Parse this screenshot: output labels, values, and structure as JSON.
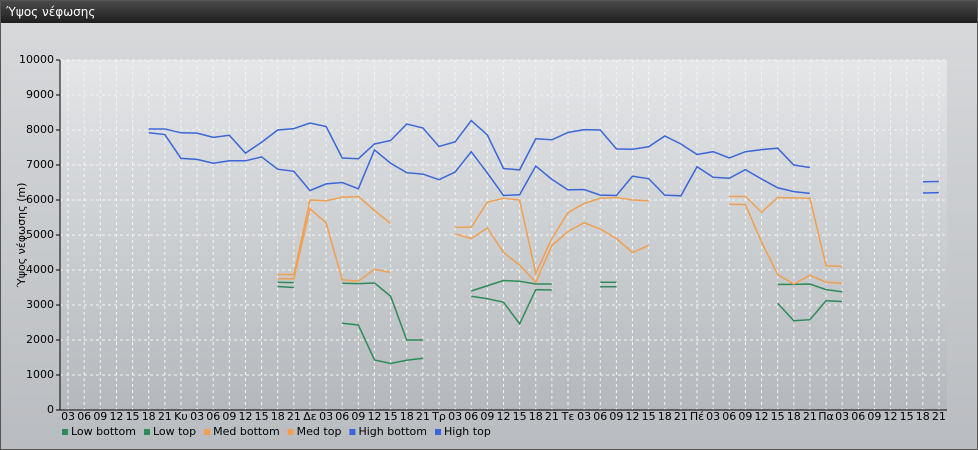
{
  "chart_data": {
    "type": "line",
    "title": "Ύψος νέφωσης",
    "y_label": "Ύψος νέφωσης (m)",
    "categories": [
      "03",
      "06",
      "09",
      "12",
      "15",
      "18",
      "21",
      "Κυ",
      "03",
      "06",
      "09",
      "12",
      "15",
      "18",
      "21",
      "Δε",
      "03",
      "06",
      "09",
      "12",
      "15",
      "18",
      "21",
      "Τρ",
      "03",
      "06",
      "09",
      "12",
      "15",
      "18",
      "21",
      "Τε",
      "03",
      "06",
      "09",
      "12",
      "15",
      "18",
      "21",
      "Πέ",
      "03",
      "06",
      "09",
      "12",
      "15",
      "18",
      "21",
      "Πα",
      "03",
      "06",
      "09",
      "12",
      "15",
      "18",
      "21"
    ],
    "ylim": [
      0,
      10000
    ],
    "yticks": [
      0,
      1000,
      2000,
      3000,
      4000,
      5000,
      6000,
      7000,
      8000,
      9000,
      10000
    ],
    "grid": true,
    "legend": "bottom",
    "series": [
      {
        "name": "Low bottom",
        "color": "#2e8b57",
        "values": [
          null,
          null,
          null,
          null,
          null,
          null,
          null,
          null,
          null,
          null,
          null,
          null,
          null,
          3530,
          3500,
          null,
          null,
          2480,
          2430,
          1430,
          1330,
          1420,
          1480,
          null,
          null,
          3250,
          3180,
          3080,
          2460,
          3440,
          3430,
          null,
          null,
          3520,
          3520,
          null,
          null,
          null,
          null,
          null,
          null,
          null,
          null,
          null,
          3050,
          2550,
          2580,
          3120,
          3100,
          null,
          null,
          null,
          null,
          null,
          null
        ]
      },
      {
        "name": "Low top",
        "color": "#2e8b57",
        "values": [
          null,
          null,
          null,
          null,
          null,
          null,
          null,
          null,
          null,
          null,
          null,
          null,
          null,
          3650,
          3640,
          null,
          null,
          3620,
          3610,
          3630,
          3250,
          2000,
          2000,
          null,
          null,
          3400,
          3550,
          3700,
          3680,
          3600,
          3600,
          null,
          null,
          3650,
          3650,
          null,
          null,
          null,
          null,
          null,
          null,
          null,
          null,
          null,
          3590,
          3590,
          3600,
          3440,
          3380,
          null,
          null,
          null,
          null,
          null,
          null
        ]
      },
      {
        "name": "Med bottom",
        "color": "#f0a050",
        "values": [
          null,
          null,
          null,
          null,
          null,
          null,
          null,
          null,
          null,
          null,
          null,
          null,
          null,
          3750,
          3750,
          5750,
          5350,
          3720,
          3680,
          4020,
          3930,
          null,
          null,
          null,
          5030,
          4900,
          5200,
          4500,
          4140,
          3650,
          4700,
          5100,
          5350,
          5170,
          4900,
          4500,
          4700,
          null,
          null,
          null,
          null,
          5880,
          5870,
          4800,
          3870,
          3600,
          3850,
          3650,
          3620,
          null,
          null,
          null,
          null,
          null,
          null
        ]
      },
      {
        "name": "Med top",
        "color": "#f0a050",
        "values": [
          null,
          null,
          null,
          null,
          null,
          null,
          null,
          null,
          null,
          null,
          null,
          null,
          null,
          3870,
          3870,
          6000,
          5980,
          6080,
          6100,
          5700,
          5330,
          null,
          null,
          null,
          5220,
          5220,
          5940,
          6050,
          6000,
          3900,
          4900,
          5640,
          5900,
          6050,
          6070,
          6000,
          5980,
          null,
          null,
          null,
          null,
          6100,
          6100,
          5650,
          6070,
          6060,
          6050,
          4120,
          4100,
          null,
          null,
          null,
          null,
          null,
          null
        ]
      },
      {
        "name": "High bottom",
        "color": "#3a66d8",
        "values": [
          null,
          null,
          null,
          null,
          null,
          7920,
          7870,
          7190,
          7160,
          7050,
          7120,
          7120,
          7230,
          6880,
          6820,
          6270,
          6460,
          6500,
          6320,
          7430,
          7050,
          6780,
          6740,
          6580,
          6800,
          7380,
          6770,
          6130,
          6150,
          6970,
          6590,
          6290,
          6300,
          6140,
          6130,
          6680,
          6610,
          6140,
          6120,
          6950,
          6650,
          6620,
          6870,
          6600,
          6350,
          6240,
          6190,
          null,
          null,
          null,
          null,
          null,
          null,
          6200,
          6210
        ]
      },
      {
        "name": "High top",
        "color": "#3a66d8",
        "values": [
          null,
          null,
          null,
          null,
          null,
          8030,
          8030,
          7920,
          7910,
          7790,
          7850,
          7340,
          7650,
          8000,
          8040,
          8200,
          8100,
          7200,
          7180,
          7600,
          7700,
          8170,
          8060,
          7530,
          7660,
          8270,
          7860,
          6900,
          6860,
          7750,
          7720,
          7930,
          8010,
          8000,
          7460,
          7450,
          7520,
          7830,
          7600,
          7300,
          7380,
          7200,
          7380,
          7440,
          7480,
          7000,
          6930,
          null,
          null,
          null,
          null,
          null,
          null,
          6520,
          6530
        ]
      }
    ]
  }
}
